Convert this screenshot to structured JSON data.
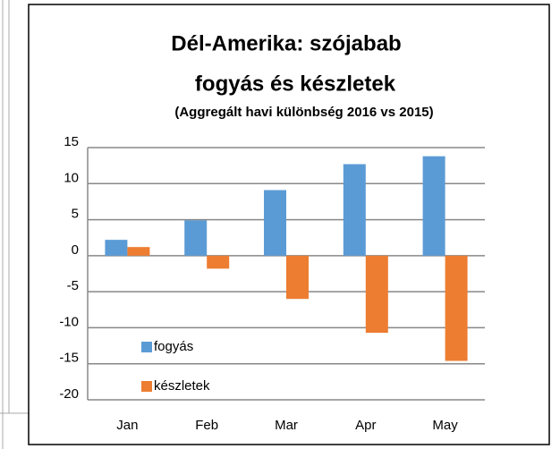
{
  "chart_data": {
    "type": "bar",
    "title": [
      "Dél-Amerika: szójabab",
      "fogyás és készletek"
    ],
    "subtitle": "(Aggregált havi különbség 2016 vs 2015)",
    "categories": [
      "Jan",
      "Feb",
      "Mar",
      "Apr",
      "May"
    ],
    "series": [
      {
        "name": "fogyás",
        "color": "#5b9bd5",
        "values": [
          2.2,
          4.9,
          9.1,
          12.7,
          13.8
        ]
      },
      {
        "name": "készletek",
        "color": "#ed7d31",
        "values": [
          1.2,
          -1.8,
          -6,
          -10.7,
          -14.6
        ]
      }
    ],
    "ylim": [
      -20,
      15
    ],
    "yticks": [
      15,
      10,
      5,
      0,
      -5,
      -10,
      -15,
      -20
    ],
    "grid": true,
    "legend": "lower left"
  }
}
